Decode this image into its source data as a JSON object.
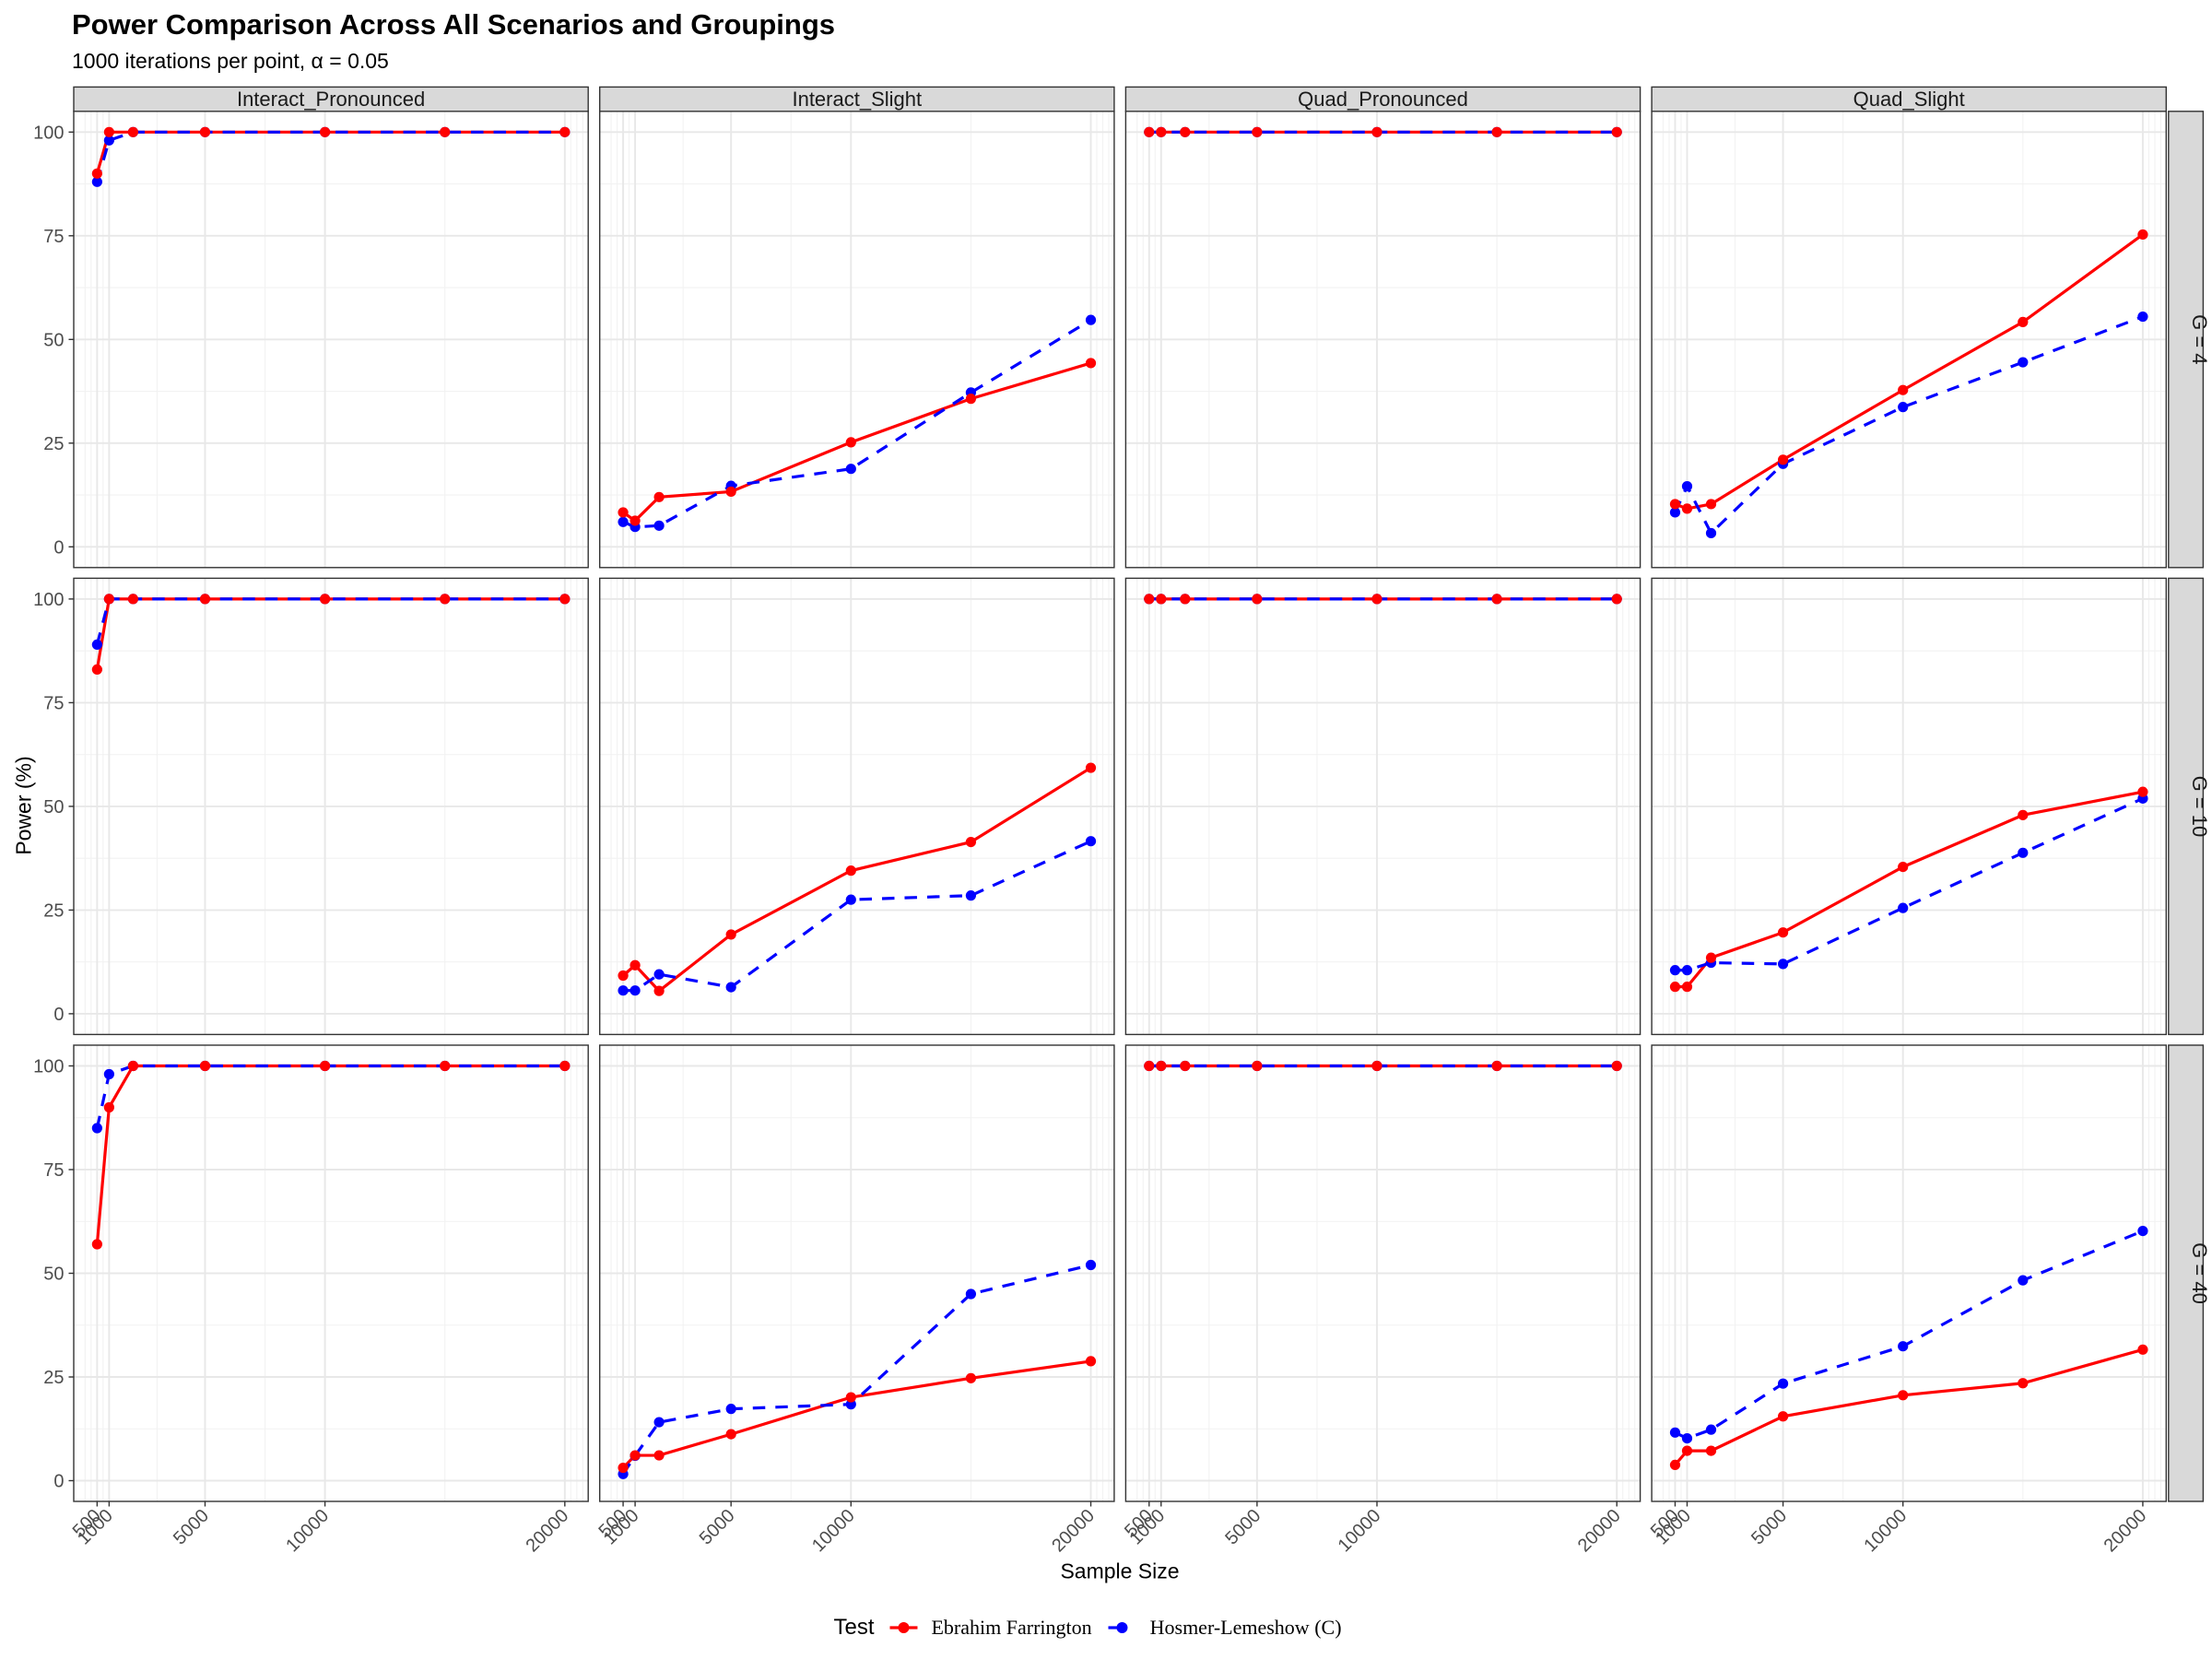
{
  "title": "Power Comparison Across All Scenarios and Groupings",
  "subtitle": "1000 iterations per point, α = 0.05",
  "legend": {
    "title": "Test",
    "items": [
      {
        "label": "Ebrahim Farrington",
        "color": "#FF0000",
        "linetype": "solid"
      },
      {
        "label": "Hosmer-Lemeshow (C)",
        "color": "#0000FF",
        "linetype": "dashed"
      }
    ]
  },
  "style": {
    "red": "#FF0000",
    "blue": "#0000FF",
    "panel_background": "#FFFFFF",
    "panel_border": "#333333",
    "grid_major": "#E8E8E8",
    "grid_minor": "#F2F2F2",
    "strip_fill": "#D9D9D9",
    "strip_text": "#1A1A1A",
    "axis_text": "#4D4D4D",
    "tick_color": "#333333"
  },
  "chart_data": {
    "type": "line",
    "title": "Power Comparison Across All Scenarios and Groupings",
    "subtitle": "1000 iterations per point, α = 0.05",
    "xlabel": "Sample Size",
    "ylabel": "Power (%)",
    "facet_columns": [
      "Interact_Pronounced",
      "Interact_Slight",
      "Quad_Pronounced",
      "Quad_Slight"
    ],
    "facet_rows": [
      "G = 4",
      "G = 10",
      "G = 40"
    ],
    "x": [
      500,
      1000,
      2000,
      5000,
      10000,
      15000,
      20000
    ],
    "x_axis": {
      "ticks": [
        500,
        1000,
        5000,
        10000,
        20000
      ],
      "tick_labels": [
        "500",
        "1000",
        "5000",
        "10000",
        "20000"
      ],
      "minor_breaks": [
        0,
        250,
        750,
        3000,
        7500,
        15000,
        20250,
        20500,
        20750
      ],
      "domain": [
        -475,
        20975
      ],
      "scale": "linear"
    },
    "y_axis": {
      "ticks": [
        0,
        25,
        50,
        75,
        100
      ],
      "tick_labels": [
        "0",
        "25",
        "50",
        "75",
        "100"
      ],
      "minor_breaks": [
        12.5,
        37.5,
        62.5,
        87.5
      ],
      "domain": [
        -5,
        105
      ]
    },
    "series_names": [
      "Ebrahim Farrington",
      "Hosmer-Lemeshow (C)"
    ],
    "panels": [
      {
        "row": "G = 4",
        "col": "Interact_Pronounced",
        "series": [
          {
            "name": "Ebrahim Farrington",
            "values": [
              90,
              100,
              100,
              100,
              100,
              100,
              100
            ]
          },
          {
            "name": "Hosmer-Lemeshow (C)",
            "values": [
              88,
              98,
              100,
              100,
              100,
              100,
              100
            ]
          }
        ]
      },
      {
        "row": "G = 4",
        "col": "Interact_Slight",
        "series": [
          {
            "name": "Ebrahim Farrington",
            "values": [
              8.3,
              6.3,
              12,
              13.3,
              25.2,
              35.7,
              44.3
            ]
          },
          {
            "name": "Hosmer-Lemeshow (C)",
            "values": [
              6,
              4.8,
              5.1,
              14.7,
              18.8,
              37.2,
              54.7
            ]
          }
        ]
      },
      {
        "row": "G = 4",
        "col": "Quad_Pronounced",
        "series": [
          {
            "name": "Ebrahim Farrington",
            "values": [
              100,
              100,
              100,
              100,
              100,
              100,
              100
            ]
          },
          {
            "name": "Hosmer-Lemeshow (C)",
            "values": [
              100,
              100,
              100,
              100,
              100,
              100,
              100
            ]
          }
        ]
      },
      {
        "row": "G = 4",
        "col": "Quad_Slight",
        "series": [
          {
            "name": "Ebrahim Farrington",
            "values": [
              10.3,
              9.2,
              10.3,
              21,
              37.8,
              54.2,
              75.3
            ]
          },
          {
            "name": "Hosmer-Lemeshow (C)",
            "values": [
              8.3,
              14.6,
              3.3,
              20,
              33.7,
              44.5,
              55.5
            ]
          }
        ]
      },
      {
        "row": "G = 10",
        "col": "Interact_Pronounced",
        "series": [
          {
            "name": "Ebrahim Farrington",
            "values": [
              83,
              100,
              100,
              100,
              100,
              100,
              100
            ]
          },
          {
            "name": "Hosmer-Lemeshow (C)",
            "values": [
              89,
              100,
              100,
              100,
              100,
              100,
              100
            ]
          }
        ]
      },
      {
        "row": "G = 10",
        "col": "Interact_Slight",
        "series": [
          {
            "name": "Ebrahim Farrington",
            "values": [
              9.2,
              11.7,
              5.5,
              19.1,
              34.5,
              41.4,
              59.3
            ]
          },
          {
            "name": "Hosmer-Lemeshow (C)",
            "values": [
              5.6,
              5.6,
              9.5,
              6.4,
              27.5,
              28.5,
              41.6
            ]
          }
        ]
      },
      {
        "row": "G = 10",
        "col": "Quad_Pronounced",
        "series": [
          {
            "name": "Ebrahim Farrington",
            "values": [
              100,
              100,
              100,
              100,
              100,
              100,
              100
            ]
          },
          {
            "name": "Hosmer-Lemeshow (C)",
            "values": [
              100,
              100,
              100,
              100,
              100,
              100,
              100
            ]
          }
        ]
      },
      {
        "row": "G = 10",
        "col": "Quad_Slight",
        "series": [
          {
            "name": "Ebrahim Farrington",
            "values": [
              6.5,
              6.5,
              13.5,
              19.6,
              35.4,
              47.9,
              53.5
            ]
          },
          {
            "name": "Hosmer-Lemeshow (C)",
            "values": [
              10.5,
              10.5,
              12.3,
              12,
              25.5,
              38.8,
              51.9
            ]
          }
        ]
      },
      {
        "row": "G = 40",
        "col": "Interact_Pronounced",
        "series": [
          {
            "name": "Ebrahim Farrington",
            "values": [
              57,
              90,
              100,
              100,
              100,
              100,
              100
            ]
          },
          {
            "name": "Hosmer-Lemeshow (C)",
            "values": [
              85,
              98,
              100,
              100,
              100,
              100,
              100
            ]
          }
        ]
      },
      {
        "row": "G = 40",
        "col": "Interact_Slight",
        "series": [
          {
            "name": "Ebrahim Farrington",
            "values": [
              3.1,
              6.1,
              6.1,
              11.2,
              20.1,
              24.7,
              28.8
            ]
          },
          {
            "name": "Hosmer-Lemeshow (C)",
            "values": [
              1.6,
              6,
              14.1,
              17.3,
              18.4,
              45,
              52
            ]
          }
        ]
      },
      {
        "row": "G = 40",
        "col": "Quad_Pronounced",
        "series": [
          {
            "name": "Ebrahim Farrington",
            "values": [
              100,
              100,
              100,
              100,
              100,
              100,
              100
            ]
          },
          {
            "name": "Hosmer-Lemeshow (C)",
            "values": [
              100,
              100,
              100,
              100,
              100,
              100,
              100
            ]
          }
        ]
      },
      {
        "row": "G = 40",
        "col": "Quad_Slight",
        "series": [
          {
            "name": "Ebrahim Farrington",
            "values": [
              3.8,
              7.2,
              7.2,
              15.5,
              20.6,
              23.5,
              31.6
            ]
          },
          {
            "name": "Hosmer-Lemeshow (C)",
            "values": [
              11.6,
              10.2,
              12.3,
              23.4,
              32.4,
              48.3,
              60.2
            ]
          }
        ]
      }
    ]
  }
}
